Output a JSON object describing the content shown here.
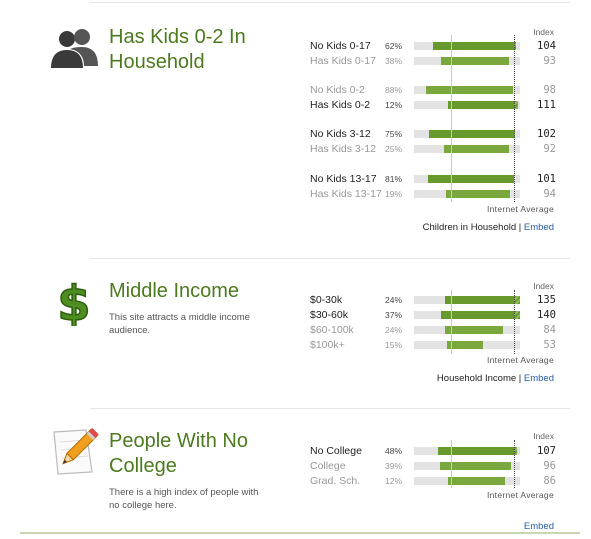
{
  "sections": [
    {
      "title": "Has Kids 0-2 In Household",
      "description": "",
      "icon": "people-silhouette-icon",
      "index_label": "Index",
      "avg_label": "Internet Average",
      "footer_label": "Children in Household",
      "footer_sep": " | ",
      "embed_label": "Embed",
      "groups": [
        [
          {
            "label": "No Kids 0-17",
            "pct_text": "62%",
            "pct": 62,
            "index": 104,
            "dim": false
          },
          {
            "label": "Has Kids 0-17",
            "pct_text": "38%",
            "pct": 38,
            "index": 93,
            "dim": true
          }
        ],
        [
          {
            "label": "No Kids 0-2",
            "pct_text": "88%",
            "pct": 88,
            "index": 98,
            "dim": true
          },
          {
            "label": "Has Kids 0-2",
            "pct_text": "12%",
            "pct": 12,
            "index": 111,
            "dim": false
          }
        ],
        [
          {
            "label": "No Kids 3-12",
            "pct_text": "75%",
            "pct": 75,
            "index": 102,
            "dim": false
          },
          {
            "label": "Has Kids 3-12",
            "pct_text": "25%",
            "pct": 25,
            "index": 92,
            "dim": true
          }
        ],
        [
          {
            "label": "No Kids 13-17",
            "pct_text": "81%",
            "pct": 81,
            "index": 101,
            "dim": false
          },
          {
            "label": "Has Kids 13-17",
            "pct_text": "19%",
            "pct": 19,
            "index": 94,
            "dim": true
          }
        ]
      ]
    },
    {
      "title": "Middle Income",
      "description": "This site attracts a middle income audience.",
      "icon": "dollar-sign-icon",
      "index_label": "Index",
      "avg_label": "Internet Average",
      "footer_label": "Household Income",
      "footer_sep": " | ",
      "embed_label": "Embed",
      "groups": [
        [
          {
            "label": "$0-30k",
            "pct_text": "24%",
            "pct": 24,
            "index": 135,
            "dim": false
          },
          {
            "label": "$30-60k",
            "pct_text": "37%",
            "pct": 37,
            "index": 140,
            "dim": false
          },
          {
            "label": "$60-100k",
            "pct_text": "24%",
            "pct": 24,
            "index": 84,
            "dim": true
          },
          {
            "label": "$100k+",
            "pct_text": "15%",
            "pct": 15,
            "index": 53,
            "dim": true
          }
        ]
      ]
    },
    {
      "title": "People With No College",
      "description": "There is a high index of people with no college here.",
      "icon": "pencil-paper-icon",
      "index_label": "Index",
      "avg_label": "Internet Average",
      "footer_label": "",
      "footer_sep": "",
      "embed_label": "Embed",
      "groups": [
        [
          {
            "label": "No College",
            "pct_text": "48%",
            "pct": 48,
            "index": 107,
            "dim": false
          },
          {
            "label": "College",
            "pct_text": "39%",
            "pct": 39,
            "index": 96,
            "dim": true
          },
          {
            "label": "Grad. Sch.",
            "pct_text": "12%",
            "pct": 12,
            "index": 86,
            "dim": true
          }
        ]
      ]
    }
  ]
}
